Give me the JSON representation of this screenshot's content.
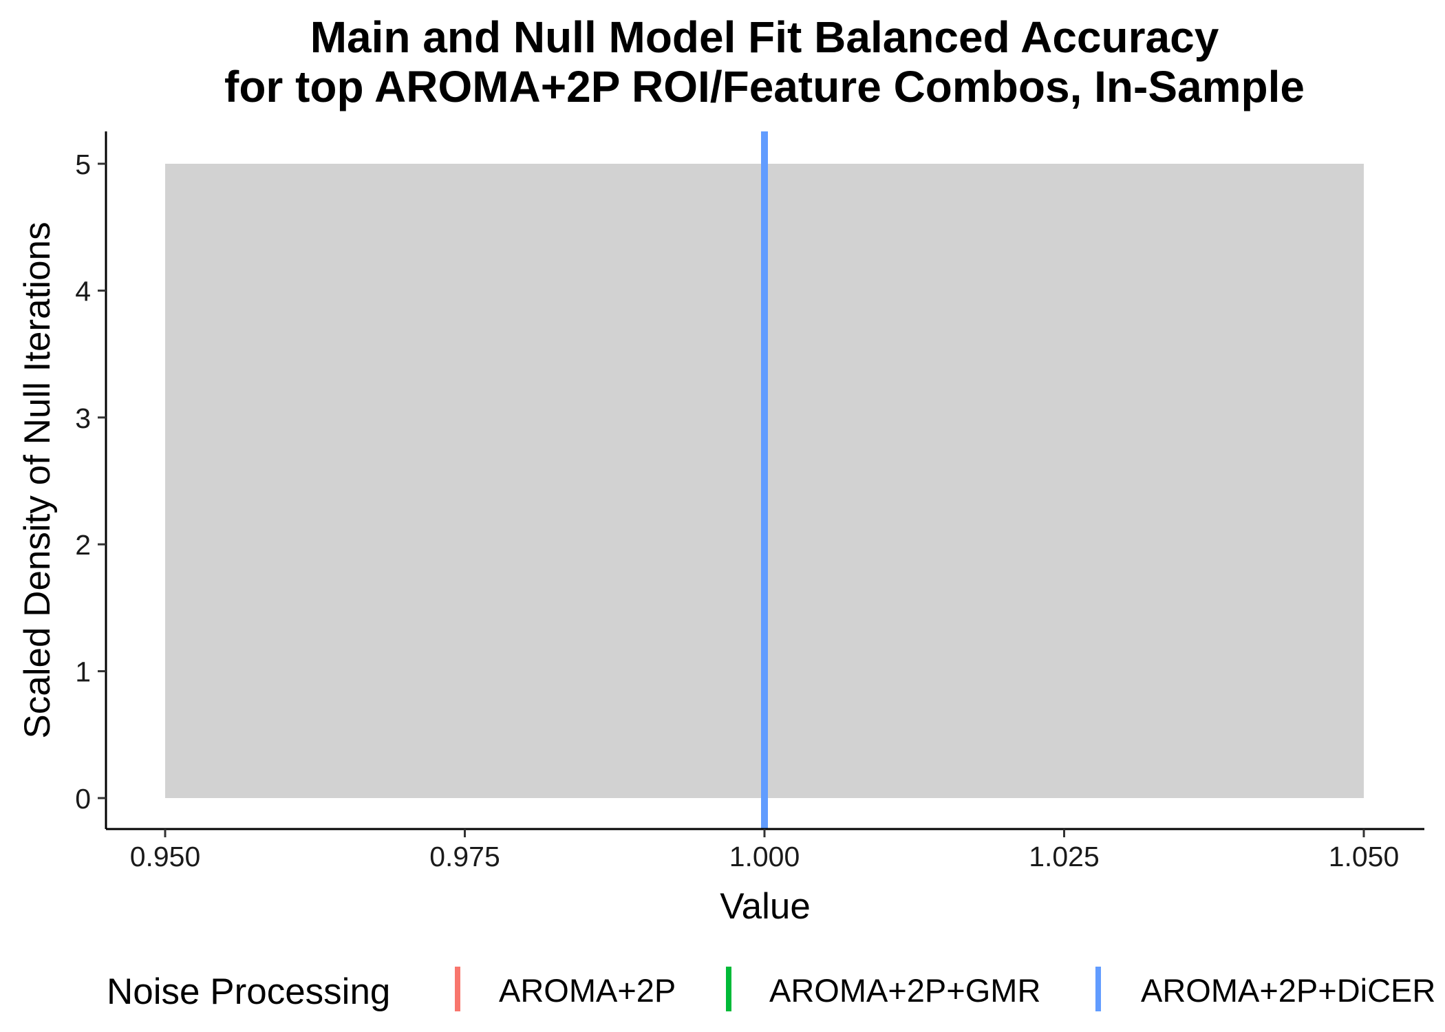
{
  "chart_data": {
    "type": "area",
    "title": "Main and Null Model Fit Balanced Accuracy\nfor top AROMA+2P ROI/Feature Combos, In-Sample",
    "title_lines": [
      "Main and Null Model Fit Balanced Accuracy",
      "for top AROMA+2P ROI/Feature Combos, In-Sample"
    ],
    "xlabel": "Value",
    "ylabel": "Scaled Density of Null Iterations",
    "xlim": [
      0.95,
      1.05
    ],
    "ylim": [
      0,
      5
    ],
    "x_ticks": [
      0.95,
      0.975,
      1.0,
      1.025,
      1.05
    ],
    "x_tick_labels": [
      "0.950",
      "0.975",
      "1.000",
      "1.025",
      "1.050"
    ],
    "y_ticks": [
      0,
      1,
      2,
      3,
      4,
      5
    ],
    "y_tick_labels": [
      "0",
      "1",
      "2",
      "3",
      "4",
      "5"
    ],
    "grid": false,
    "null_density": {
      "x": [
        0.95,
        1.05
      ],
      "y": [
        5,
        5
      ],
      "color": "#d2d2d2"
    },
    "main_model_lines": [
      {
        "name": "AROMA+2P+DiCER",
        "x": 1.0,
        "color": "#619cff"
      }
    ],
    "legend": {
      "title": "Noise Processing",
      "position": "bottom",
      "items": [
        {
          "label": "AROMA+2P",
          "color": "#f8766d"
        },
        {
          "label": "AROMA+2P+GMR",
          "color": "#00ba38"
        },
        {
          "label": "AROMA+2P+DiCER",
          "color": "#619cff"
        }
      ]
    }
  }
}
